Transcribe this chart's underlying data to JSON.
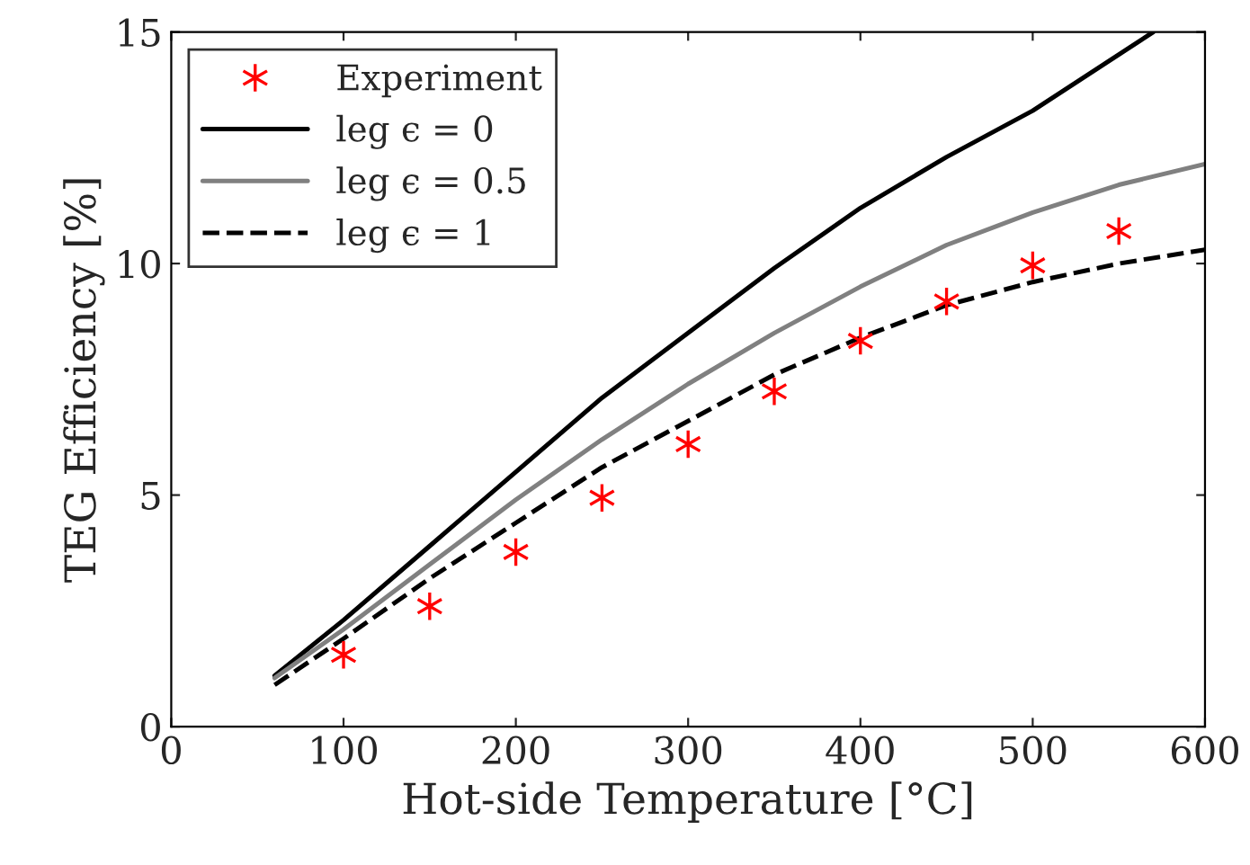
{
  "chart_data": {
    "type": "line",
    "xlabel": "Hot-side Temperature [°C]",
    "ylabel": "TEG Efficiency [%]",
    "xlim": [
      0,
      600
    ],
    "ylim": [
      0,
      15
    ],
    "xticks": [
      0,
      100,
      200,
      300,
      400,
      500,
      600
    ],
    "yticks": [
      0,
      5,
      10,
      15
    ],
    "grid": false,
    "legend": "top left",
    "series": [
      {
        "name": "Experiment",
        "type": "scatter",
        "marker": "cross",
        "color": "#ff0000",
        "x": [
          100,
          150,
          200,
          250,
          300,
          350,
          400,
          450,
          500,
          550
        ],
        "values": [
          1.55,
          2.6,
          3.77,
          4.94,
          6.1,
          7.24,
          8.33,
          9.18,
          9.96,
          10.7
        ]
      },
      {
        "name": "leg ϵ = 0",
        "line_style": "solid",
        "color": "#000000",
        "x": [
          60,
          100,
          150,
          200,
          250,
          300,
          350,
          400,
          450,
          500,
          570
        ],
        "values": [
          1.1,
          2.3,
          3.9,
          5.5,
          7.1,
          8.5,
          9.9,
          11.2,
          12.3,
          13.3,
          15.0
        ]
      },
      {
        "name": "leg ϵ = 0.5",
        "line_style": "solid",
        "color": "#808080",
        "x": [
          60,
          100,
          150,
          200,
          250,
          300,
          350,
          400,
          450,
          500,
          550,
          600
        ],
        "values": [
          1.05,
          2.1,
          3.5,
          4.9,
          6.2,
          7.4,
          8.5,
          9.5,
          10.4,
          11.1,
          11.7,
          12.15
        ]
      },
      {
        "name": "leg ϵ = 1",
        "line_style": "dashed",
        "color": "#000000",
        "x": [
          60,
          100,
          150,
          200,
          250,
          300,
          350,
          400,
          450,
          500,
          550,
          600
        ],
        "values": [
          0.9,
          1.9,
          3.2,
          4.4,
          5.6,
          6.6,
          7.6,
          8.4,
          9.1,
          9.6,
          10.0,
          10.3
        ]
      }
    ]
  }
}
